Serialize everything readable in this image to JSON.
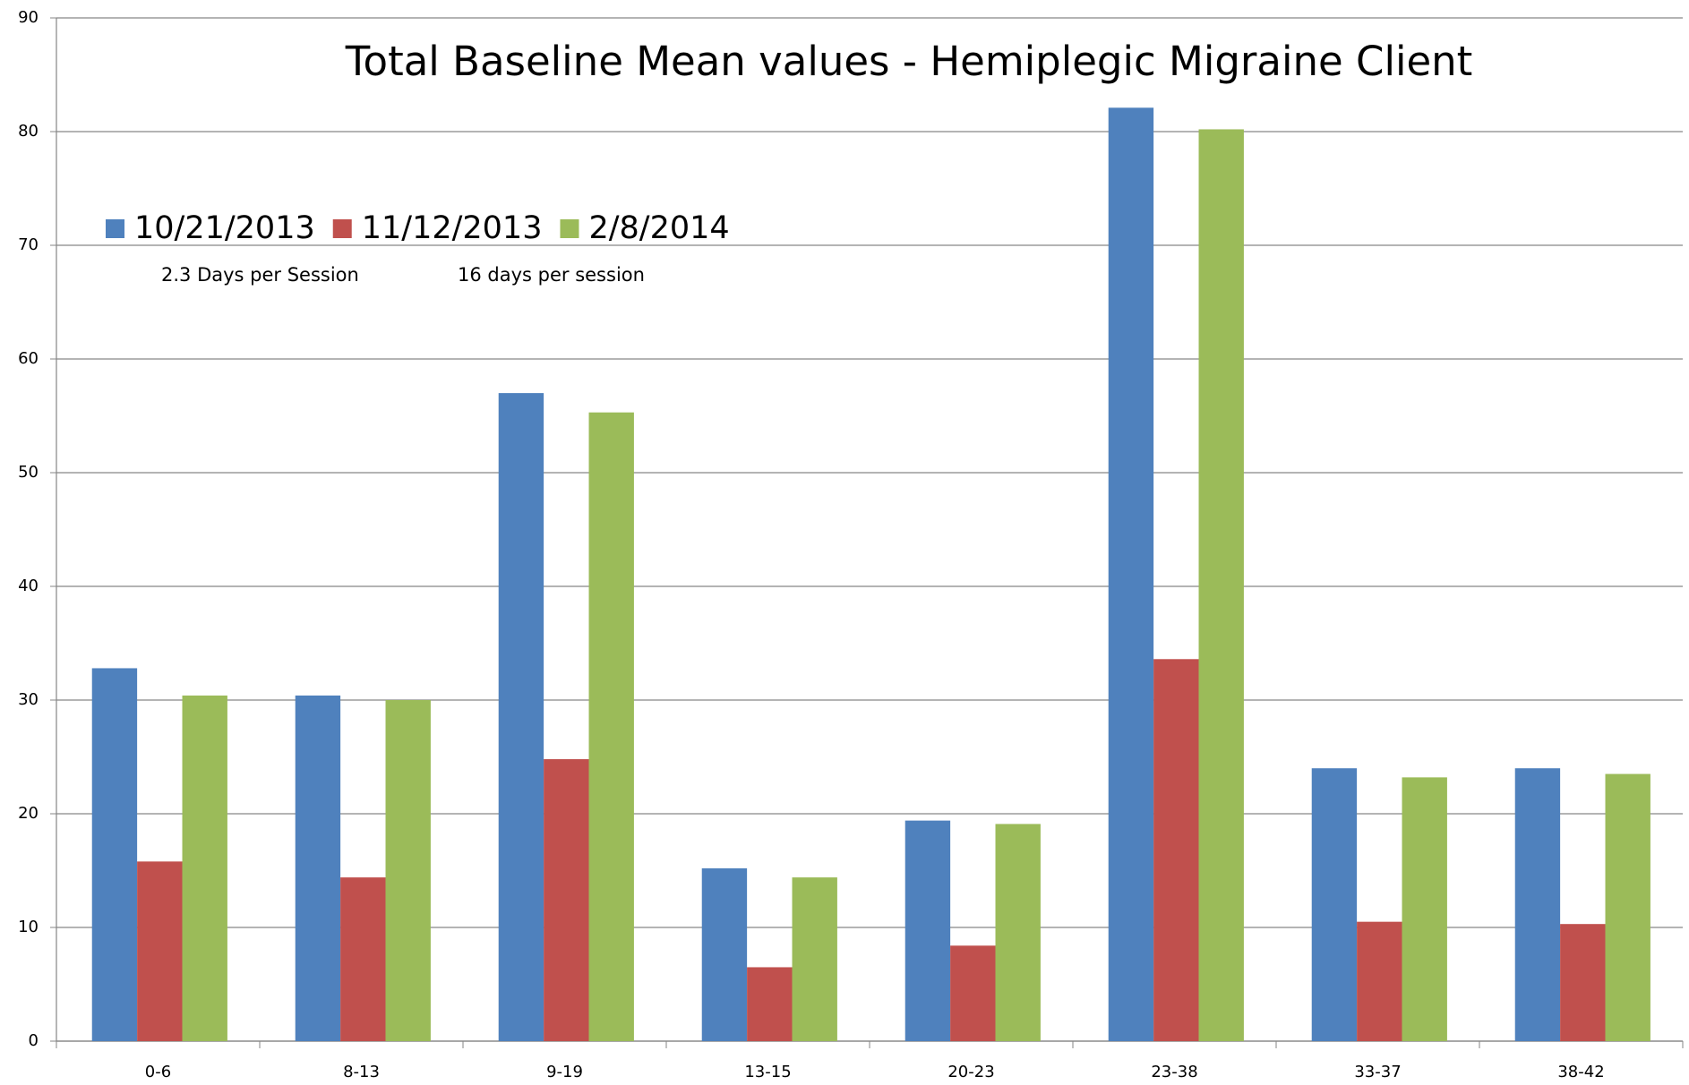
{
  "chart_data": {
    "type": "bar",
    "title": "Total Baseline Mean values - Hemiplegic Migraine Client",
    "annotations": [
      "2.3 Days per Session",
      "16 days per session"
    ],
    "categories": [
      "0-6",
      "8-13",
      "9-19",
      "13-15",
      "20-23",
      "23-38",
      "33-37",
      "38-42"
    ],
    "series": [
      {
        "name": "10/21/2013",
        "color": "#4f81bd",
        "values": [
          32.8,
          30.4,
          57.0,
          15.2,
          19.4,
          82.1,
          24.0,
          24.0
        ]
      },
      {
        "name": "11/12/2013",
        "color": "#c0504d",
        "values": [
          15.8,
          14.4,
          24.8,
          6.5,
          8.4,
          33.6,
          10.5,
          10.3
        ]
      },
      {
        "name": "2/8/2014",
        "color": "#9bbb59",
        "values": [
          30.4,
          30.0,
          55.3,
          14.4,
          19.1,
          80.2,
          23.2,
          23.5
        ]
      }
    ],
    "ylim": [
      0,
      90
    ],
    "yticks": [
      0,
      10,
      20,
      30,
      40,
      50,
      60,
      70,
      80,
      90
    ],
    "grid": true,
    "legend": "upper left"
  }
}
